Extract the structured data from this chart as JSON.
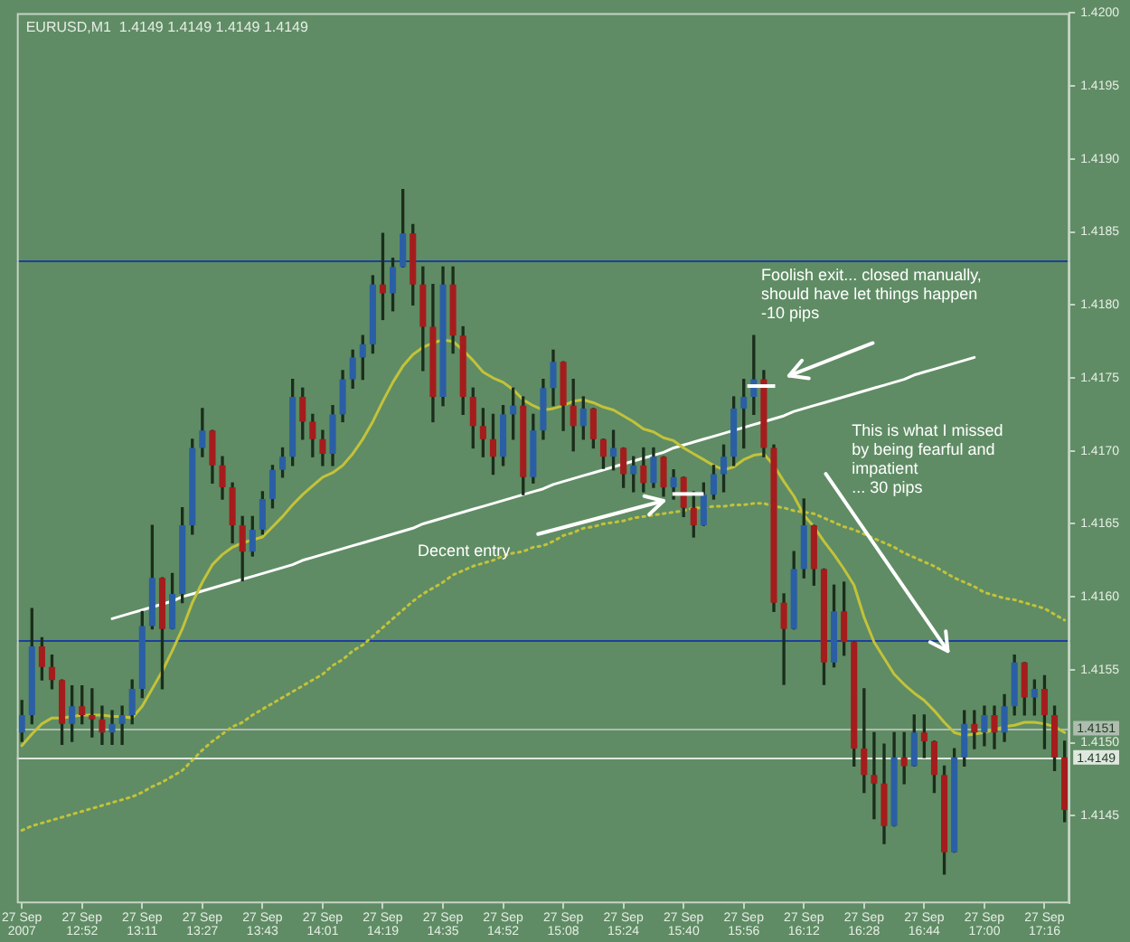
{
  "chart_data": {
    "type": "candlestick",
    "title": "EURUSD,M1  1.4149 1.4149 1.4149 1.4149",
    "categories": [
      "27 Sep 2007",
      null,
      null,
      null,
      null,
      null,
      "27 Sep 12:52",
      null,
      null,
      null,
      null,
      null,
      "27 Sep 13:11",
      null,
      null,
      null,
      null,
      null,
      "27 Sep 13:27",
      null,
      null,
      null,
      null,
      null,
      "27 Sep 13:43",
      null,
      null,
      null,
      null,
      null,
      "27 Sep 14:01",
      null,
      null,
      null,
      null,
      null,
      "27 Sep 14:19",
      null,
      null,
      null,
      null,
      null,
      "27 Sep 14:35",
      null,
      null,
      null,
      null,
      null,
      "27 Sep 14:52",
      null,
      null,
      null,
      null,
      null,
      "27 Sep 15:08",
      null,
      null,
      null,
      null,
      null,
      "27 Sep 15:24",
      null,
      null,
      null,
      null,
      null,
      "27 Sep 15:40",
      null,
      null,
      null,
      null,
      null,
      "27 Sep 15:56",
      null,
      null,
      null,
      null,
      null,
      "27 Sep 16:12",
      null,
      null,
      null,
      null,
      null,
      "27 Sep 16:28",
      null,
      null,
      null,
      null,
      null,
      "27 Sep 16:44",
      null,
      null,
      null,
      null,
      null,
      "27 Sep 17:00",
      null,
      null,
      null,
      null,
      null,
      "27 Sep 17:16",
      null,
      null
    ],
    "ohlc": [
      [
        1.41507,
        1.41529,
        1.41501,
        1.41519
      ],
      [
        1.41519,
        1.41592,
        1.41513,
        1.41566
      ],
      [
        1.41566,
        1.41572,
        1.41543,
        1.41552
      ],
      [
        1.41552,
        1.4156,
        1.41537,
        1.41543
      ],
      [
        1.41543,
        1.41543,
        1.41499,
        1.41513
      ],
      [
        1.41513,
        1.41539,
        1.41501,
        1.41525
      ],
      [
        1.41525,
        1.41539,
        1.41513,
        1.41519
      ],
      [
        1.41519,
        1.41537,
        1.41504,
        1.41516
      ],
      [
        1.41516,
        1.41525,
        1.41499,
        1.41507
      ],
      [
        1.41507,
        1.41522,
        1.41499,
        1.41513
      ],
      [
        1.41513,
        1.41525,
        1.41499,
        1.41519
      ],
      [
        1.41519,
        1.41543,
        1.41513,
        1.41537
      ],
      [
        1.41537,
        1.4159,
        1.41531,
        1.4158
      ],
      [
        1.4158,
        1.41649,
        1.41578,
        1.41613
      ],
      [
        1.41613,
        1.41613,
        1.41537,
        1.41578
      ],
      [
        1.41578,
        1.41616,
        1.41578,
        1.41602
      ],
      [
        1.41602,
        1.41661,
        1.41596,
        1.41649
      ],
      [
        1.41649,
        1.41708,
        1.41643,
        1.41702
      ],
      [
        1.41702,
        1.41729,
        1.41696,
        1.41714
      ],
      [
        1.41714,
        1.41714,
        1.41678,
        1.4169
      ],
      [
        1.4169,
        1.41696,
        1.41667,
        1.41675
      ],
      [
        1.41675,
        1.41678,
        1.41637,
        1.41649
      ],
      [
        1.41649,
        1.41655,
        1.41611,
        1.41631
      ],
      [
        1.41631,
        1.41655,
        1.41628,
        1.41646
      ],
      [
        1.41646,
        1.41672,
        1.41643,
        1.41667
      ],
      [
        1.41667,
        1.4169,
        1.41661,
        1.41687
      ],
      [
        1.41687,
        1.41702,
        1.41682,
        1.41696
      ],
      [
        1.41696,
        1.41749,
        1.4169,
        1.41737
      ],
      [
        1.41737,
        1.41743,
        1.41708,
        1.4172
      ],
      [
        1.4172,
        1.41725,
        1.41696,
        1.41708
      ],
      [
        1.41708,
        1.41714,
        1.4169,
        1.41698
      ],
      [
        1.41698,
        1.41731,
        1.4169,
        1.41725
      ],
      [
        1.41725,
        1.41755,
        1.4172,
        1.41749
      ],
      [
        1.41749,
        1.41769,
        1.41743,
        1.41764
      ],
      [
        1.41764,
        1.41779,
        1.41749,
        1.41773
      ],
      [
        1.41773,
        1.4182,
        1.41767,
        1.41814
      ],
      [
        1.41814,
        1.41849,
        1.4179,
        1.41808
      ],
      [
        1.41808,
        1.41832,
        1.41796,
        1.41826
      ],
      [
        1.41826,
        1.41879,
        1.41826,
        1.41849
      ],
      [
        1.41849,
        1.41855,
        1.418,
        1.41814
      ],
      [
        1.41814,
        1.41826,
        1.41755,
        1.41785
      ],
      [
        1.41785,
        1.41814,
        1.4172,
        1.41737
      ],
      [
        1.41737,
        1.41826,
        1.41731,
        1.41814
      ],
      [
        1.41814,
        1.41826,
        1.41767,
        1.41779
      ],
      [
        1.41779,
        1.41785,
        1.41725,
        1.41737
      ],
      [
        1.41737,
        1.41743,
        1.41702,
        1.41717
      ],
      [
        1.41717,
        1.41729,
        1.41696,
        1.41708
      ],
      [
        1.41708,
        1.41725,
        1.41684,
        1.41696
      ],
      [
        1.41696,
        1.41731,
        1.4169,
        1.41725
      ],
      [
        1.41725,
        1.41743,
        1.41708,
        1.41731
      ],
      [
        1.41731,
        1.41737,
        1.4167,
        1.41682
      ],
      [
        1.41682,
        1.41725,
        1.41678,
        1.41714
      ],
      [
        1.41714,
        1.41749,
        1.41708,
        1.41743
      ],
      [
        1.41743,
        1.41769,
        1.41731,
        1.41761
      ],
      [
        1.41761,
        1.41761,
        1.41714,
        1.41731
      ],
      [
        1.41731,
        1.41749,
        1.417,
        1.41717
      ],
      [
        1.41717,
        1.41737,
        1.41708,
        1.41729
      ],
      [
        1.41729,
        1.41729,
        1.41702,
        1.41708
      ],
      [
        1.41708,
        1.41708,
        1.41688,
        1.41696
      ],
      [
        1.41696,
        1.41714,
        1.41687,
        1.41702
      ],
      [
        1.41702,
        1.41702,
        1.41675,
        1.41684
      ],
      [
        1.41684,
        1.41696,
        1.41672,
        1.4169
      ],
      [
        1.4169,
        1.41702,
        1.41672,
        1.41678
      ],
      [
        1.41678,
        1.41702,
        1.41675,
        1.41696
      ],
      [
        1.41696,
        1.41696,
        1.41669,
        1.41675
      ],
      [
        1.41675,
        1.41687,
        1.41667,
        1.41682
      ],
      [
        1.41682,
        1.41682,
        1.41655,
        1.41661
      ],
      [
        1.41661,
        1.41672,
        1.41641,
        1.41649
      ],
      [
        1.41649,
        1.41678,
        1.41649,
        1.4167
      ],
      [
        1.4167,
        1.4169,
        1.41667,
        1.41684
      ],
      [
        1.41684,
        1.41704,
        1.41672,
        1.41696
      ],
      [
        1.41696,
        1.41737,
        1.4169,
        1.41729
      ],
      [
        1.41729,
        1.41749,
        1.41702,
        1.41737
      ],
      [
        1.41737,
        1.41779,
        1.41725,
        1.41749
      ],
      [
        1.41749,
        1.41755,
        1.41696,
        1.41702
      ],
      [
        1.41702,
        1.41704,
        1.4159,
        1.41596
      ],
      [
        1.41596,
        1.41602,
        1.4154,
        1.41578
      ],
      [
        1.41578,
        1.41631,
        1.41578,
        1.41619
      ],
      [
        1.41619,
        1.41667,
        1.41613,
        1.41649
      ],
      [
        1.41649,
        1.41649,
        1.41608,
        1.41619
      ],
      [
        1.41619,
        1.41619,
        1.4154,
        1.41555
      ],
      [
        1.41555,
        1.41608,
        1.41552,
        1.4159
      ],
      [
        1.4159,
        1.4161,
        1.4156,
        1.41569
      ],
      [
        1.41569,
        1.41569,
        1.41484,
        1.41496
      ],
      [
        1.41496,
        1.41537,
        1.41466,
        1.41478
      ],
      [
        1.41478,
        1.41507,
        1.41448,
        1.41472
      ],
      [
        1.41472,
        1.41499,
        1.41431,
        1.41443
      ],
      [
        1.41443,
        1.41507,
        1.41443,
        1.4149
      ],
      [
        1.4149,
        1.41507,
        1.41472,
        1.41484
      ],
      [
        1.41484,
        1.41519,
        1.41484,
        1.41507
      ],
      [
        1.41507,
        1.41519,
        1.4149,
        1.41501
      ],
      [
        1.41501,
        1.41501,
        1.41466,
        1.41478
      ],
      [
        1.41478,
        1.41484,
        1.4141,
        1.41425
      ],
      [
        1.41425,
        1.41496,
        1.41425,
        1.4149
      ],
      [
        1.4149,
        1.41522,
        1.41484,
        1.41513
      ],
      [
        1.41513,
        1.41522,
        1.41496,
        1.41507
      ],
      [
        1.41507,
        1.41525,
        1.41498,
        1.41519
      ],
      [
        1.41519,
        1.41525,
        1.41496,
        1.41507
      ],
      [
        1.41507,
        1.41533,
        1.41501,
        1.41525
      ],
      [
        1.41525,
        1.4156,
        1.41519,
        1.41555
      ],
      [
        1.41555,
        1.41555,
        1.41519,
        1.41531
      ],
      [
        1.41531,
        1.41543,
        1.41519,
        1.41537
      ],
      [
        1.41537,
        1.41546,
        1.41496,
        1.41519
      ],
      [
        1.41519,
        1.41525,
        1.41481,
        1.4149
      ],
      [
        1.4149,
        1.41501,
        1.41446,
        1.41454
      ]
    ],
    "colors": [
      "#2a5fa5",
      "#2a5fa5",
      "#a51c1c",
      "#a51c1c",
      "#a51c1c",
      "#2a5fa5",
      "#a51c1c",
      "#a51c1c",
      "#a51c1c",
      "#2a5fa5",
      "#2a5fa5",
      "#2a5fa5",
      "#2a5fa5",
      "#2a5fa5",
      "#a51c1c",
      "#2a5fa5",
      "#2a5fa5",
      "#2a5fa5",
      "#2a5fa5",
      "#a51c1c",
      "#a51c1c",
      "#a51c1c",
      "#a51c1c",
      "#2a5fa5",
      "#2a5fa5",
      "#2a5fa5",
      "#2a5fa5",
      "#2a5fa5",
      "#a51c1c",
      "#a51c1c",
      "#a51c1c",
      "#2a5fa5",
      "#2a5fa5",
      "#2a5fa5",
      "#2a5fa5",
      "#2a5fa5",
      "#a51c1c",
      "#2a5fa5",
      "#2a5fa5",
      "#a51c1c",
      "#a51c1c",
      "#a51c1c",
      "#2a5fa5",
      "#a51c1c",
      "#a51c1c",
      "#a51c1c",
      "#a51c1c",
      "#a51c1c",
      "#2a5fa5",
      "#2a5fa5",
      "#a51c1c",
      "#2a5fa5",
      "#2a5fa5",
      "#2a5fa5",
      "#a51c1c",
      "#a51c1c",
      "#2a5fa5",
      "#a51c1c",
      "#a51c1c",
      "#2a5fa5",
      "#a51c1c",
      "#2a5fa5",
      "#a51c1c",
      "#2a5fa5",
      "#a51c1c",
      "#2a5fa5",
      "#a51c1c",
      "#a51c1c",
      "#2a5fa5",
      "#2a5fa5",
      "#2a5fa5",
      "#2a5fa5",
      "#2a5fa5",
      "#2a5fa5",
      "#a51c1c",
      "#a51c1c",
      "#a51c1c",
      "#2a5fa5",
      "#2a5fa5",
      "#a51c1c",
      "#a51c1c",
      "#2a5fa5",
      "#a51c1c",
      "#a51c1c",
      "#a51c1c",
      "#a51c1c",
      "#a51c1c",
      "#2a5fa5",
      "#a51c1c",
      "#2a5fa5",
      "#a51c1c",
      "#a51c1c",
      "#a51c1c",
      "#2a5fa5",
      "#2a5fa5",
      "#a51c1c",
      "#2a5fa5",
      "#a51c1c",
      "#2a5fa5",
      "#2a5fa5",
      "#a51c1c",
      "#2a5fa5",
      "#a51c1c",
      "#a51c1c",
      "#a51c1c"
    ],
    "series": [
      {
        "type": "line",
        "color": "#c3c23a",
        "values": [
          1.41498,
          1.41506,
          1.41513,
          1.41517,
          1.41517,
          1.41518,
          1.41519,
          1.41519,
          1.41519,
          1.41518,
          1.41518,
          1.41517,
          1.41525,
          1.41537,
          1.41549,
          1.41563,
          1.41578,
          1.41596,
          1.4161,
          1.41622,
          1.41629,
          1.41634,
          1.41637,
          1.41639,
          1.41641,
          1.41648,
          1.41655,
          1.41663,
          1.4167,
          1.41676,
          1.41682,
          1.41685,
          1.4169,
          1.41698,
          1.41708,
          1.4172,
          1.41734,
          1.41747,
          1.41758,
          1.41766,
          1.41771,
          1.41774,
          1.41776,
          1.41775,
          1.41769,
          1.41762,
          1.41754,
          1.4175,
          1.41747,
          1.41742,
          1.41735,
          1.41731,
          1.41728,
          1.41729,
          1.41731,
          1.41734,
          1.41735,
          1.41733,
          1.4173,
          1.41728,
          1.41724,
          1.4172,
          1.41715,
          1.41713,
          1.41709,
          1.41707,
          1.41702,
          1.41698,
          1.41694,
          1.4169,
          1.41687,
          1.41689,
          1.41694,
          1.41697,
          1.41698,
          1.4169,
          1.41679,
          1.41669,
          1.41656,
          1.41648,
          1.41638,
          1.41629,
          1.41619,
          1.41608,
          1.41586,
          1.41569,
          1.41558,
          1.41547,
          1.4154,
          1.41534,
          1.41529,
          1.41522,
          1.41514,
          1.41507,
          1.41505,
          1.41506,
          1.41507,
          1.41509,
          1.41511,
          1.41512,
          1.41514,
          1.41514,
          1.41513,
          1.41511,
          1.41507
        ]
      },
      {
        "type": "line",
        "color": "#c3c23a",
        "line_style": "dotted",
        "values": [
          1.4144,
          1.41443,
          1.41445,
          1.41447,
          1.41449,
          1.41451,
          1.41453,
          1.41455,
          1.41457,
          1.41459,
          1.41461,
          1.41463,
          1.41466,
          1.4147,
          1.41473,
          1.41477,
          1.41481,
          1.41488,
          1.41495,
          1.41501,
          1.41506,
          1.41511,
          1.41514,
          1.41519,
          1.41523,
          1.41527,
          1.41531,
          1.41535,
          1.41539,
          1.41543,
          1.41547,
          1.41553,
          1.41557,
          1.41563,
          1.41567,
          1.41573,
          1.41579,
          1.41585,
          1.41591,
          1.41597,
          1.41602,
          1.41606,
          1.4161,
          1.41615,
          1.41618,
          1.41621,
          1.41623,
          1.41625,
          1.41628,
          1.4163,
          1.41631,
          1.41634,
          1.41635,
          1.41638,
          1.41642,
          1.41644,
          1.41647,
          1.41648,
          1.4165,
          1.41651,
          1.41652,
          1.41654,
          1.41655,
          1.41656,
          1.41657,
          1.41658,
          1.41659,
          1.41661,
          1.41661,
          1.41662,
          1.41662,
          1.41663,
          1.41663,
          1.41664,
          1.41664,
          1.41662,
          1.41661,
          1.41659,
          1.41658,
          1.41657,
          1.41654,
          1.41651,
          1.41648,
          1.41646,
          1.41643,
          1.4164,
          1.41637,
          1.41634,
          1.4163,
          1.41627,
          1.41624,
          1.41621,
          1.41617,
          1.41613,
          1.4161,
          1.41607,
          1.41603,
          1.41601,
          1.41599,
          1.41598,
          1.41596,
          1.41594,
          1.41592,
          1.41588,
          1.41584
        ]
      },
      {
        "type": "line",
        "color": "#ffffff",
        "values": [
          null,
          null,
          null,
          null,
          null,
          null,
          null,
          null,
          null,
          1.41585,
          1.41587,
          1.41589,
          1.41591,
          1.41593,
          1.41595,
          1.41597,
          1.416,
          1.41602,
          1.41604,
          1.41606,
          1.41608,
          1.4161,
          1.41612,
          1.41614,
          1.41616,
          1.41618,
          1.4162,
          1.41622,
          1.41625,
          1.41627,
          1.41629,
          1.41631,
          1.41633,
          1.41635,
          1.41637,
          1.41639,
          1.41641,
          1.41643,
          1.41645,
          1.41647,
          1.4165,
          1.41652,
          1.41654,
          1.41656,
          1.41658,
          1.4166,
          1.41662,
          1.41664,
          1.41666,
          1.41668,
          1.4167,
          1.41672,
          1.41674,
          1.41677,
          1.41679,
          1.41681,
          1.41683,
          1.41685,
          1.41687,
          1.41689,
          1.41691,
          1.41693,
          1.41695,
          1.41697,
          1.41699,
          1.41702,
          1.41704,
          1.41706,
          1.41708,
          1.4171,
          1.41712,
          1.41714,
          1.41716,
          1.41718,
          1.4172,
          1.41722,
          1.41724,
          1.41727,
          1.41729,
          1.41731,
          1.41733,
          1.41735,
          1.41737,
          1.41739,
          1.41741,
          1.41743,
          1.41745,
          1.41747,
          1.41749,
          1.41752,
          1.41754,
          1.41756,
          1.41758,
          1.4176,
          1.41762,
          1.41764,
          null,
          null,
          null,
          null,
          null,
          null,
          null,
          null,
          null
        ]
      }
    ],
    "ylim": [
      1.4139,
      1.42
    ],
    "yticks": [
      1.4145,
      {
        "value": 1.415,
        "label": "1.4150"
      },
      1.4155,
      {
        "value": 1.416,
        "label": "1.4160"
      },
      1.4165,
      {
        "value": 1.417,
        "label": "1.4170"
      },
      1.4175,
      {
        "value": 1.418,
        "label": "1.4180"
      },
      1.4185,
      {
        "value": 1.419,
        "label": "1.4190"
      },
      1.4195,
      {
        "value": 1.42,
        "label": "1.4200"
      }
    ],
    "ref_lines": [
      {
        "axis": "y",
        "value": 1.4183,
        "color": "#1c3f9f"
      },
      {
        "axis": "y",
        "value": 1.4157,
        "color": "#1c3f9f"
      },
      {
        "axis": "y",
        "value": 1.4151,
        "label": "1.4151",
        "color": "#aebdae"
      },
      {
        "axis": "y",
        "value": 1.4149,
        "label": "1.4149",
        "color": "#dfe8df"
      }
    ],
    "annotations": [
      "Foolish exit... closed manually,\nshould have let things happen\n-10 pips",
      "Decent entry",
      "This is what I missed\nby being fearful and\nimpatient\n... 30 pips"
    ]
  }
}
